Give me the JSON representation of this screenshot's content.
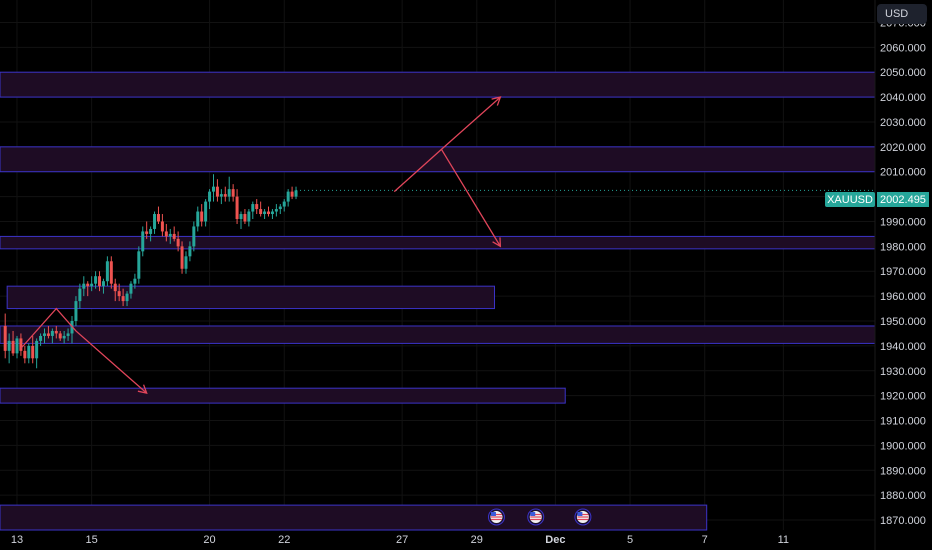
{
  "header": {
    "currency": "USD",
    "symbol": "XAUUSD",
    "last_price": "2002.495"
  },
  "colors": {
    "background": "#000000",
    "up": "#26a69a",
    "down": "#ef5350",
    "zone_fill": "#1e0c24",
    "zone_border": "#3b33c8",
    "arrow": "#e0455a",
    "grid": "#121212"
  },
  "event_icons": [
    "us-flag-icon",
    "us-flag-icon",
    "us-flag-icon"
  ],
  "chart_data": {
    "type": "candlestick",
    "ylim": [
      1866,
      2075
    ],
    "y_ticks": [
      1870,
      1880,
      1890,
      1900,
      1910,
      1920,
      1930,
      1940,
      1950,
      1960,
      1970,
      1980,
      1990,
      2000,
      2010,
      2020,
      2030,
      2040,
      2050,
      2060,
      2070
    ],
    "y_tick_labels": [
      "1870.000",
      "1880.000",
      "1890.000",
      "1900.000",
      "1910.000",
      "1920.000",
      "1930.000",
      "1940.000",
      "1950.000",
      "1960.000",
      "1970.000",
      "1980.000",
      "1990.000",
      "2000.000",
      "2010.000",
      "2020.000",
      "2030.000",
      "2040.000",
      "2050.000",
      "2060.000",
      "2070.000"
    ],
    "x_ticks": [
      {
        "label": "13",
        "bar": 3
      },
      {
        "label": "15",
        "bar": 22
      },
      {
        "label": "20",
        "bar": 52
      },
      {
        "label": "22",
        "bar": 71
      },
      {
        "label": "27",
        "bar": 101
      },
      {
        "label": "29",
        "bar": 120
      },
      {
        "label": "Dec",
        "bar": 140
      },
      {
        "label": "5",
        "bar": 159
      },
      {
        "label": "7",
        "bar": 178
      },
      {
        "label": "11",
        "bar": 198
      }
    ],
    "last_price": 2002.495,
    "candles": [
      [
        1948,
        1953,
        1935,
        1938
      ],
      [
        1938,
        1945,
        1933,
        1942
      ],
      [
        1942,
        1946,
        1936,
        1937
      ],
      [
        1937,
        1944,
        1935,
        1943
      ],
      [
        1943,
        1945,
        1936,
        1938
      ],
      [
        1938,
        1940,
        1933,
        1935
      ],
      [
        1935,
        1941,
        1933,
        1940
      ],
      [
        1940,
        1944,
        1933,
        1935
      ],
      [
        1935,
        1943,
        1931,
        1942
      ],
      [
        1942,
        1945,
        1940,
        1944
      ],
      [
        1944,
        1947,
        1941,
        1945
      ],
      [
        1945,
        1948,
        1943,
        1944
      ],
      [
        1944,
        1947,
        1941,
        1946
      ],
      [
        1946,
        1948,
        1943,
        1945
      ],
      [
        1945,
        1946,
        1942,
        1943
      ],
      [
        1943,
        1946,
        1941,
        1944
      ],
      [
        1944,
        1947,
        1942,
        1945
      ],
      [
        1945,
        1952,
        1941,
        1950
      ],
      [
        1950,
        1960,
        1948,
        1958
      ],
      [
        1958,
        1965,
        1955,
        1963
      ],
      [
        1963,
        1968,
        1960,
        1965
      ],
      [
        1965,
        1966,
        1960,
        1964
      ],
      [
        1964,
        1968,
        1962,
        1965
      ],
      [
        1965,
        1970,
        1963,
        1968
      ],
      [
        1968,
        1970,
        1962,
        1964
      ],
      [
        1964,
        1967,
        1961,
        1966
      ],
      [
        1966,
        1976,
        1964,
        1974
      ],
      [
        1974,
        1976,
        1963,
        1965
      ],
      [
        1965,
        1967,
        1958,
        1962
      ],
      [
        1962,
        1965,
        1958,
        1960
      ],
      [
        1960,
        1963,
        1956,
        1958
      ],
      [
        1958,
        1962,
        1956,
        1961
      ],
      [
        1961,
        1966,
        1959,
        1965
      ],
      [
        1965,
        1969,
        1963,
        1967
      ],
      [
        1967,
        1980,
        1965,
        1978
      ],
      [
        1978,
        1988,
        1976,
        1986
      ],
      [
        1986,
        1990,
        1983,
        1985
      ],
      [
        1985,
        1988,
        1982,
        1987
      ],
      [
        1987,
        1994,
        1985,
        1993
      ],
      [
        1993,
        1996,
        1989,
        1990
      ],
      [
        1990,
        1993,
        1984,
        1986
      ],
      [
        1986,
        1989,
        1982,
        1984
      ],
      [
        1984,
        1987,
        1981,
        1985
      ],
      [
        1985,
        1988,
        1982,
        1983
      ],
      [
        1983,
        1986,
        1978,
        1980
      ],
      [
        1980,
        1982,
        1969,
        1971
      ],
      [
        1971,
        1978,
        1969,
        1976
      ],
      [
        1976,
        1982,
        1974,
        1980
      ],
      [
        1980,
        1990,
        1978,
        1988
      ],
      [
        1988,
        1996,
        1986,
        1994
      ],
      [
        1994,
        1997,
        1988,
        1990
      ],
      [
        1990,
        1999,
        1988,
        1998
      ],
      [
        1998,
        2003,
        1995,
        2002
      ],
      [
        2002,
        2009,
        1998,
        2004
      ],
      [
        2004,
        2007,
        1998,
        2000
      ],
      [
        2000,
        2003,
        1997,
        2001
      ],
      [
        2001,
        2004,
        1998,
        2000
      ],
      [
        2000,
        2008,
        1998,
        2003
      ],
      [
        2003,
        2005,
        1998,
        2000
      ],
      [
        2000,
        2003,
        1989,
        1991
      ],
      [
        1991,
        1994,
        1987,
        1993
      ],
      [
        1993,
        1995,
        1989,
        1990
      ],
      [
        1990,
        1995,
        1988,
        1994
      ],
      [
        1994,
        1998,
        1991,
        1997
      ],
      [
        1997,
        1999,
        1993,
        1995
      ],
      [
        1995,
        1998,
        1992,
        1993
      ],
      [
        1993,
        1995,
        1991,
        1994
      ],
      [
        1994,
        1996,
        1992,
        1993
      ],
      [
        1993,
        1995,
        1991,
        1994
      ],
      [
        1994,
        1997,
        1992,
        1995
      ],
      [
        1995,
        1997,
        1993,
        1996
      ],
      [
        1996,
        1999,
        1994,
        1998
      ],
      [
        1998,
        2003,
        1996,
        2002
      ],
      [
        2002,
        2004,
        1999,
        2000
      ],
      [
        2000,
        2004,
        1999,
        2002.495
      ]
    ],
    "zones": [
      {
        "y1": 2040,
        "y2": 2050,
        "start_bar": -8,
        "end_bar": 230
      },
      {
        "y1": 2010,
        "y2": 2020,
        "start_bar": -8,
        "end_bar": 230
      },
      {
        "y1": 1979,
        "y2": 1984,
        "start_bar": -8,
        "end_bar": 230
      },
      {
        "y1": 1955,
        "y2": 1964,
        "start_bar": 0.5,
        "end_bar": 124.5
      },
      {
        "y1": 1941,
        "y2": 1948,
        "start_bar": -8,
        "end_bar": 230
      },
      {
        "y1": 1917,
        "y2": 1923,
        "start_bar": -8,
        "end_bar": 142.5
      },
      {
        "y1": 1866,
        "y2": 1876,
        "start_bar": -8,
        "end_bar": 178.5
      }
    ],
    "arrows": [
      {
        "points": [
          [
            4,
            1939
          ],
          [
            13,
            1955
          ],
          [
            18,
            1946
          ],
          [
            36,
            1921
          ]
        ],
        "arrowhead": true
      },
      {
        "points": [
          [
            99,
            2002
          ],
          [
            111,
            2019
          ],
          [
            126,
            2040
          ]
        ],
        "arrowhead": true
      },
      {
        "points": [
          [
            111,
            2019
          ],
          [
            126,
            1980
          ]
        ],
        "arrowhead": true
      }
    ],
    "event_bars": [
      125,
      135,
      147
    ]
  }
}
